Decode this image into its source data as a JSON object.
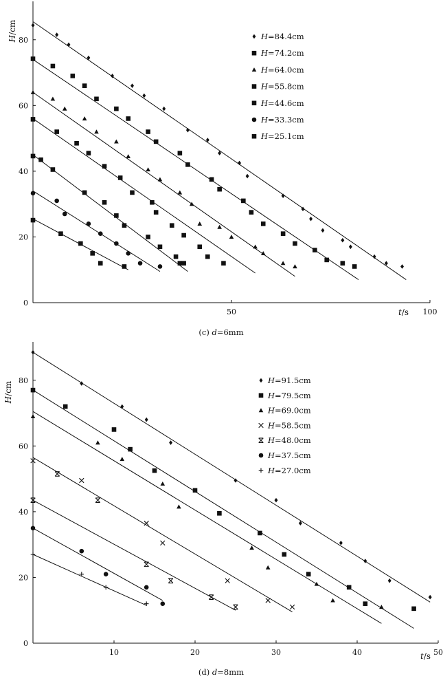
{
  "chart_data": [
    {
      "type": "scatter",
      "panel_id": "c",
      "caption": "(c) d=6mm",
      "caption_prefix": "(c)",
      "caption_var": "d",
      "caption_value": "=6mm",
      "xlabel_var": "t",
      "xlabel_unit": "/s",
      "ylabel_var": "H",
      "ylabel_unit": "/cm",
      "xlim": [
        0,
        100
      ],
      "ylim": [
        0,
        90
      ],
      "xticks": [
        0,
        50,
        100
      ],
      "yticks": [
        0,
        20,
        40,
        60,
        80
      ],
      "grid": false,
      "legend_position": "top-right",
      "series": [
        {
          "name": "H=84.4cm",
          "label_var": "H",
          "label_value": "=84.4cm",
          "marker": "diamond",
          "x": [
            0,
            6,
            9,
            14,
            20,
            25,
            28,
            33,
            39,
            44,
            47,
            52,
            54,
            63,
            68,
            70,
            73,
            78,
            80,
            86,
            89,
            93
          ],
          "y": [
            84.4,
            81.5,
            78.5,
            74.5,
            69,
            66,
            63,
            59,
            52.5,
            49.5,
            45.5,
            42.5,
            38.5,
            32.5,
            28.5,
            25.5,
            22,
            19,
            17,
            14,
            12,
            11
          ],
          "fit": [
            [
              0,
              85.5
            ],
            [
              94,
              7
            ]
          ]
        },
        {
          "name": "H=74.2cm",
          "label_var": "H",
          "label_value": "=74.2cm",
          "marker": "square",
          "x": [
            0,
            5,
            10,
            13,
            16,
            21,
            24,
            29,
            31,
            37,
            39,
            45,
            47,
            53,
            55,
            58,
            63,
            66,
            71,
            74,
            78,
            81
          ],
          "y": [
            74.2,
            72,
            69,
            66,
            62,
            59,
            56,
            52,
            49,
            45.5,
            42,
            37.5,
            34.5,
            31,
            27.5,
            24,
            21,
            18,
            16,
            13,
            12,
            11
          ],
          "fit": [
            [
              0,
              74
            ],
            [
              82,
              7
            ]
          ]
        },
        {
          "name": "H=64.0cm",
          "label_var": "H",
          "label_value": "=64.0cm",
          "marker": "triangle",
          "x": [
            0,
            5,
            8,
            13,
            16,
            21,
            24,
            29,
            32,
            37,
            40,
            42,
            47,
            50,
            56,
            58,
            63,
            66
          ],
          "y": [
            64,
            62,
            59,
            56,
            52,
            49,
            44.5,
            40.5,
            37.5,
            33.5,
            30,
            24,
            23,
            20,
            17,
            15,
            12,
            11
          ],
          "fit": [
            [
              0,
              64
            ],
            [
              66,
              8
            ]
          ]
        },
        {
          "name": "H=55.8cm",
          "label_var": "H",
          "label_value": "=55.8cm",
          "marker": "square",
          "x": [
            0,
            6,
            11,
            14,
            18,
            22,
            25,
            30,
            31,
            35,
            38,
            42,
            44,
            48
          ],
          "y": [
            55.8,
            52,
            48.5,
            45.5,
            41.5,
            38,
            33.5,
            30.5,
            27.5,
            23.5,
            20.5,
            17,
            14,
            12
          ],
          "fit": [
            [
              0,
              56
            ],
            [
              56,
              9
            ]
          ]
        },
        {
          "name": "H=44.6cm",
          "label_var": "H",
          "label_value": "=44.6cm",
          "marker": "square",
          "x": [
            0,
            2,
            5,
            13,
            18,
            21,
            23,
            29,
            32,
            36,
            37,
            38
          ],
          "y": [
            44.6,
            43.5,
            40.5,
            33.5,
            30.5,
            26.5,
            23.5,
            20,
            17,
            14,
            12,
            12
          ],
          "fit": [
            [
              0,
              45
            ],
            [
              39,
              9.5
            ]
          ]
        },
        {
          "name": "H=33.3cm",
          "label_var": "H",
          "label_value": "=33.3cm",
          "marker": "circle",
          "x": [
            0,
            6,
            8,
            14,
            17,
            21,
            24,
            27,
            32
          ],
          "y": [
            33.3,
            31,
            27,
            24,
            21,
            18,
            15,
            12,
            11
          ],
          "fit": [
            [
              0,
              34
            ],
            [
              32,
              9.5
            ]
          ]
        },
        {
          "name": "H=25.1cm",
          "label_var": "H",
          "label_value": "=25.1cm",
          "marker": "square",
          "x": [
            0,
            7,
            12,
            15,
            17,
            23
          ],
          "y": [
            25.1,
            21,
            18,
            15,
            12,
            11
          ],
          "fit": [
            [
              0,
              25.5
            ],
            [
              24,
              10
            ]
          ]
        }
      ]
    },
    {
      "type": "scatter",
      "panel_id": "d",
      "caption": "(d) d=8mm",
      "caption_prefix": "(d)",
      "caption_var": "d",
      "caption_value": "=8mm",
      "xlabel_var": "t",
      "xlabel_unit": "/s",
      "ylabel_var": "H",
      "ylabel_unit": "/cm",
      "xlim": [
        0,
        50
      ],
      "ylim": [
        0,
        90
      ],
      "xticks": [
        0,
        10,
        20,
        30,
        40,
        50
      ],
      "yticks": [
        0,
        20,
        40,
        60,
        80
      ],
      "grid": false,
      "legend_position": "top-right",
      "series": [
        {
          "name": "H=91.5cm",
          "label_var": "H",
          "label_value": "=91.5cm",
          "marker": "diamond",
          "x": [
            0,
            6,
            11,
            14,
            17,
            25,
            30,
            33,
            38,
            41,
            44,
            49
          ],
          "y": [
            88.5,
            79,
            72,
            68,
            61,
            49.5,
            43.5,
            36.5,
            30.5,
            25,
            19,
            14
          ],
          "fit": [
            [
              0,
              88.5
            ],
            [
              49,
              12.5
            ]
          ]
        },
        {
          "name": "H=79.5cm",
          "label_var": "H",
          "label_value": "=79.5cm",
          "marker": "square",
          "x": [
            0,
            4,
            10,
            12,
            15,
            20,
            23,
            28,
            31,
            34,
            39,
            41,
            47
          ],
          "y": [
            77,
            72,
            65,
            59,
            52.5,
            46.5,
            39.5,
            33.5,
            27,
            21,
            17,
            12,
            10.5
          ],
          "fit": [
            [
              0,
              77
            ],
            [
              47,
              4.5
            ]
          ]
        },
        {
          "name": "H=69.0cm",
          "label_var": "H",
          "label_value": "=69.0cm",
          "marker": "triangle",
          "x": [
            0,
            8,
            11,
            16,
            18,
            27,
            29,
            35,
            37,
            43
          ],
          "y": [
            69,
            61,
            56,
            48.5,
            41.5,
            29,
            23,
            18,
            13,
            11
          ],
          "fit": [
            [
              0,
              70.5
            ],
            [
              43,
              6
            ]
          ]
        },
        {
          "name": "H=58.5cm",
          "label_var": "H",
          "label_value": "=58.5cm",
          "marker": "x",
          "x": [
            0,
            6,
            14,
            16,
            24,
            29,
            32
          ],
          "y": [
            55.5,
            49.5,
            36.5,
            30.5,
            19,
            13,
            11
          ],
          "fit": [
            [
              0,
              56.5
            ],
            [
              32,
              9.5
            ]
          ]
        },
        {
          "name": "H=48.0cm",
          "label_var": "H",
          "label_value": "=48.0cm",
          "marker": "xbar",
          "x": [
            0,
            3,
            8,
            14,
            17,
            22,
            25
          ],
          "y": [
            43.5,
            51.5,
            43.5,
            24,
            19,
            14,
            11
          ],
          "fit": [
            [
              0,
              43.5
            ],
            [
              25,
              10
            ]
          ]
        },
        {
          "name": "H=37.5cm",
          "label_var": "H",
          "label_value": "=37.5cm",
          "marker": "circle",
          "x": [
            0,
            6,
            9,
            14,
            16
          ],
          "y": [
            35,
            28,
            21,
            17,
            12
          ],
          "fit": [
            [
              0,
              35
            ],
            [
              16,
              13
            ]
          ]
        },
        {
          "name": "H=27.0cm",
          "label_var": "H",
          "label_value": "=27.0cm",
          "marker": "plus",
          "x": [
            0,
            6,
            9,
            14
          ],
          "y": [
            27,
            21,
            17,
            12
          ],
          "fit": [
            [
              0,
              27
            ],
            [
              14,
              11.5
            ]
          ]
        }
      ]
    }
  ]
}
